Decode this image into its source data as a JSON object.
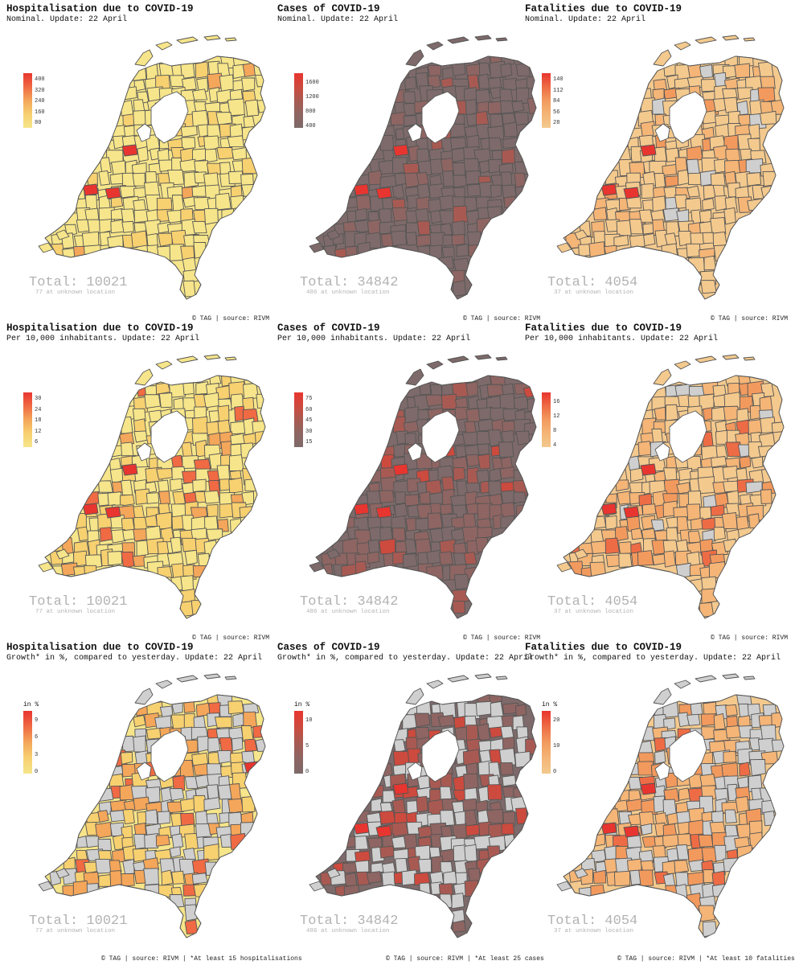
{
  "palettes": {
    "hospital": [
      "#f6e58a",
      "#f7d070",
      "#f4a65a",
      "#f06a43",
      "#e8352f"
    ],
    "cases": [
      "#7e6a6a",
      "#8e6562",
      "#a85a52",
      "#cd4a3e",
      "#e8352f"
    ],
    "deaths": [
      "#f3c98e",
      "#f4b577",
      "#f29a5e",
      "#ee6c45",
      "#e8352f"
    ],
    "missing": "#cfcfcf",
    "border": "#555555"
  },
  "panels": [
    {
      "title": "Hospitalisation due to COVID-19",
      "subtitle": "Nominal. Update: 22 April",
      "palette": "hospital",
      "legend_title": "",
      "ticks": [
        "400",
        "320",
        "240",
        "160",
        "80"
      ],
      "total": "Total: 10021",
      "unknown": "77 at unknown location",
      "credit": "© TAG | source: RIVM"
    },
    {
      "title": "Cases of COVID-19",
      "subtitle": "Nominal. Update: 22 April",
      "palette": "cases",
      "legend_title": "",
      "ticks": [
        "1600",
        "1200",
        "800",
        "400"
      ],
      "total": "Total: 34842",
      "unknown": "486 at unknown location",
      "credit": "© TAG | source: RIVM"
    },
    {
      "title": "Fatalities due to COVID-19",
      "subtitle": "Nominal. Update: 22 April",
      "palette": "deaths",
      "legend_title": "",
      "ticks": [
        "140",
        "112",
        "84",
        "56",
        "28"
      ],
      "total": "Total: 4054",
      "unknown": "37 at unknown location",
      "credit": "© TAG | source: RIVM"
    },
    {
      "title": "Hospitalisation due to COVID-19",
      "subtitle": "Per 10,000 inhabitants. Update: 22 April",
      "palette": "hospital",
      "legend_title": "",
      "ticks": [
        "30",
        "24",
        "18",
        "12",
        "6"
      ],
      "total": "Total: 10021",
      "unknown": "77 at unknown location",
      "credit": "© TAG | source: RIVM"
    },
    {
      "title": "Cases of COVID-19",
      "subtitle": "Per 10,000 inhabitants. Update: 22 April",
      "palette": "cases",
      "legend_title": "",
      "ticks": [
        "75",
        "60",
        "45",
        "30",
        "15"
      ],
      "total": "Total: 34842",
      "unknown": "486 at unknown location",
      "credit": "© TAG | source: RIVM"
    },
    {
      "title": "Fatalities due to COVID-19",
      "subtitle": "Per 10,000 inhabitants. Update: 22 April",
      "palette": "deaths",
      "legend_title": "",
      "ticks": [
        "16",
        "12",
        "8",
        "4"
      ],
      "total": "Total: 4054",
      "unknown": "37 at unknown location",
      "credit": "© TAG | source: RIVM"
    },
    {
      "title": "Hospitalisation due to COVID-19",
      "subtitle": "Growth* in %, compared to yesterday. Update: 22 April",
      "palette": "hospital",
      "legend_title": "in %",
      "ticks": [
        "9",
        "6",
        "3",
        "0"
      ],
      "total": "Total: 10021",
      "unknown": "77 at unknown location",
      "credit": "© TAG | source: RIVM | *At least 15 hospitalisations"
    },
    {
      "title": "Cases of COVID-19",
      "subtitle": "Growth* in %, compared to yesterday. Update: 22 April",
      "palette": "cases",
      "legend_title": "in %",
      "ticks": [
        "10",
        "5",
        "0"
      ],
      "total": "Total: 34842",
      "unknown": "486 at unknown location",
      "credit": "© TAG | source: RIVM | *At least 25 cases"
    },
    {
      "title": "Fatalities due to COVID-19",
      "subtitle": "Growth* in %, compared to yesterday. Update: 22 April",
      "palette": "deaths",
      "legend_title": "in %",
      "ticks": [
        "20",
        "10",
        "0"
      ],
      "total": "Total: 4054",
      "unknown": "37 at unknown location",
      "credit": "© TAG | source: RIVM | *At least 10 fatalities"
    }
  ]
}
